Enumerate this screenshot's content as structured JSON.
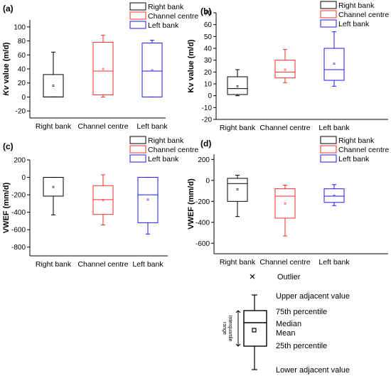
{
  "colors": {
    "right_bank": "#000000",
    "channel_centre": "#ff2a2a",
    "left_bank": "#1a1aff",
    "axis": "#000000"
  },
  "chart_data": [
    {
      "panel_label": "(a)",
      "type": "box",
      "ylabel": "Kv value (m/d)",
      "ylabel_italic_part": "Kv",
      "ylim": [
        -30,
        110
      ],
      "yticks": [
        -20,
        0,
        20,
        40,
        60,
        80,
        100
      ],
      "categories": [
        "Right bank",
        "Channel centre",
        "Left bank"
      ],
      "legend": [
        "Right bank",
        "Channel centre",
        "Left bank"
      ],
      "series": [
        {
          "name": "Right bank",
          "lower_whisker": 0,
          "q1": 0,
          "median": 0,
          "q3": 32,
          "upper_whisker": 64,
          "mean": 16
        },
        {
          "name": "Channel centre",
          "lower_whisker": 0,
          "q1": 3,
          "median": 37,
          "q3": 78,
          "upper_whisker": 88,
          "mean": 40
        },
        {
          "name": "Left bank",
          "lower_whisker": 0,
          "q1": 0,
          "median": 37,
          "q3": 77,
          "upper_whisker": 81,
          "mean": 38
        }
      ]
    },
    {
      "panel_label": "(b)",
      "type": "box",
      "ylabel": "Kv value (m/d)",
      "ylabel_italic_part": "",
      "ylim": [
        -20,
        70
      ],
      "yticks": [
        -20,
        -10,
        0,
        10,
        20,
        30,
        40,
        50,
        60,
        70
      ],
      "categories": [
        "Right bank",
        "Channel centre",
        "Left bank"
      ],
      "legend": [
        "Right bank",
        "Channel centre",
        "Left bank"
      ],
      "series": [
        {
          "name": "Right bank",
          "lower_whisker": 0,
          "q1": 1,
          "median": 6,
          "q3": 16,
          "upper_whisker": 22,
          "mean": 8
        },
        {
          "name": "Channel centre",
          "lower_whisker": 11,
          "q1": 15,
          "median": 20,
          "q3": 30,
          "upper_whisker": 39,
          "mean": 22
        },
        {
          "name": "Left bank",
          "lower_whisker": 8,
          "q1": 13,
          "median": 22,
          "q3": 40,
          "upper_whisker": 54,
          "mean": 27
        }
      ]
    },
    {
      "panel_label": "(c)",
      "type": "box",
      "ylabel": "VWEF (mm/d)",
      "ylabel_italic_part": "",
      "ylim": [
        -900,
        200
      ],
      "yticks": [
        -800,
        -600,
        -400,
        -200,
        0,
        200
      ],
      "categories": [
        "Right bank",
        "Channel centre",
        "Left bank"
      ],
      "legend": [
        "Right bank",
        "Channel centre",
        "Left bank"
      ],
      "series": [
        {
          "name": "Right bank",
          "lower_whisker": -430,
          "q1": -215,
          "median": 0,
          "q3": 0,
          "upper_whisker": 0,
          "mean": -110
        },
        {
          "name": "Channel centre",
          "lower_whisker": -545,
          "q1": -425,
          "median": -255,
          "q3": -95,
          "upper_whisker": 30,
          "mean": -260
        },
        {
          "name": "Left bank",
          "lower_whisker": -650,
          "q1": -520,
          "median": -200,
          "q3": 0,
          "upper_whisker": 0,
          "mean": -255
        }
      ]
    },
    {
      "panel_label": "(d)",
      "type": "box",
      "ylabel": "VWEF (mm/d)",
      "ylabel_italic_part": "",
      "ylim": [
        -700,
        250
      ],
      "yticks": [
        -600,
        -400,
        -200,
        0,
        200
      ],
      "categories": [
        "Right bank",
        "Channel centre",
        "Left bank"
      ],
      "legend": [
        "Right bank",
        "Channel centre",
        "Left bank"
      ],
      "series": [
        {
          "name": "Right bank",
          "lower_whisker": -345,
          "q1": -200,
          "median": -30,
          "q3": 20,
          "upper_whisker": 50,
          "mean": -85
        },
        {
          "name": "Channel centre",
          "lower_whisker": -530,
          "q1": -360,
          "median": -150,
          "q3": -80,
          "upper_whisker": -45,
          "mean": -220
        },
        {
          "name": "Left bank",
          "lower_whisker": -240,
          "q1": -210,
          "median": -150,
          "q3": -80,
          "upper_whisker": -40,
          "mean": -145
        }
      ]
    }
  ],
  "key": {
    "outlier": "Outlier",
    "upper_adjacent": "Upper adjacent value",
    "p75": "75th percentile",
    "median": "Median",
    "mean": "Mean",
    "p25": "25th percentile",
    "lower_adjacent": "Lower adjacent value",
    "iqr_line1": "Interquartile",
    "iqr_line2": "range"
  }
}
